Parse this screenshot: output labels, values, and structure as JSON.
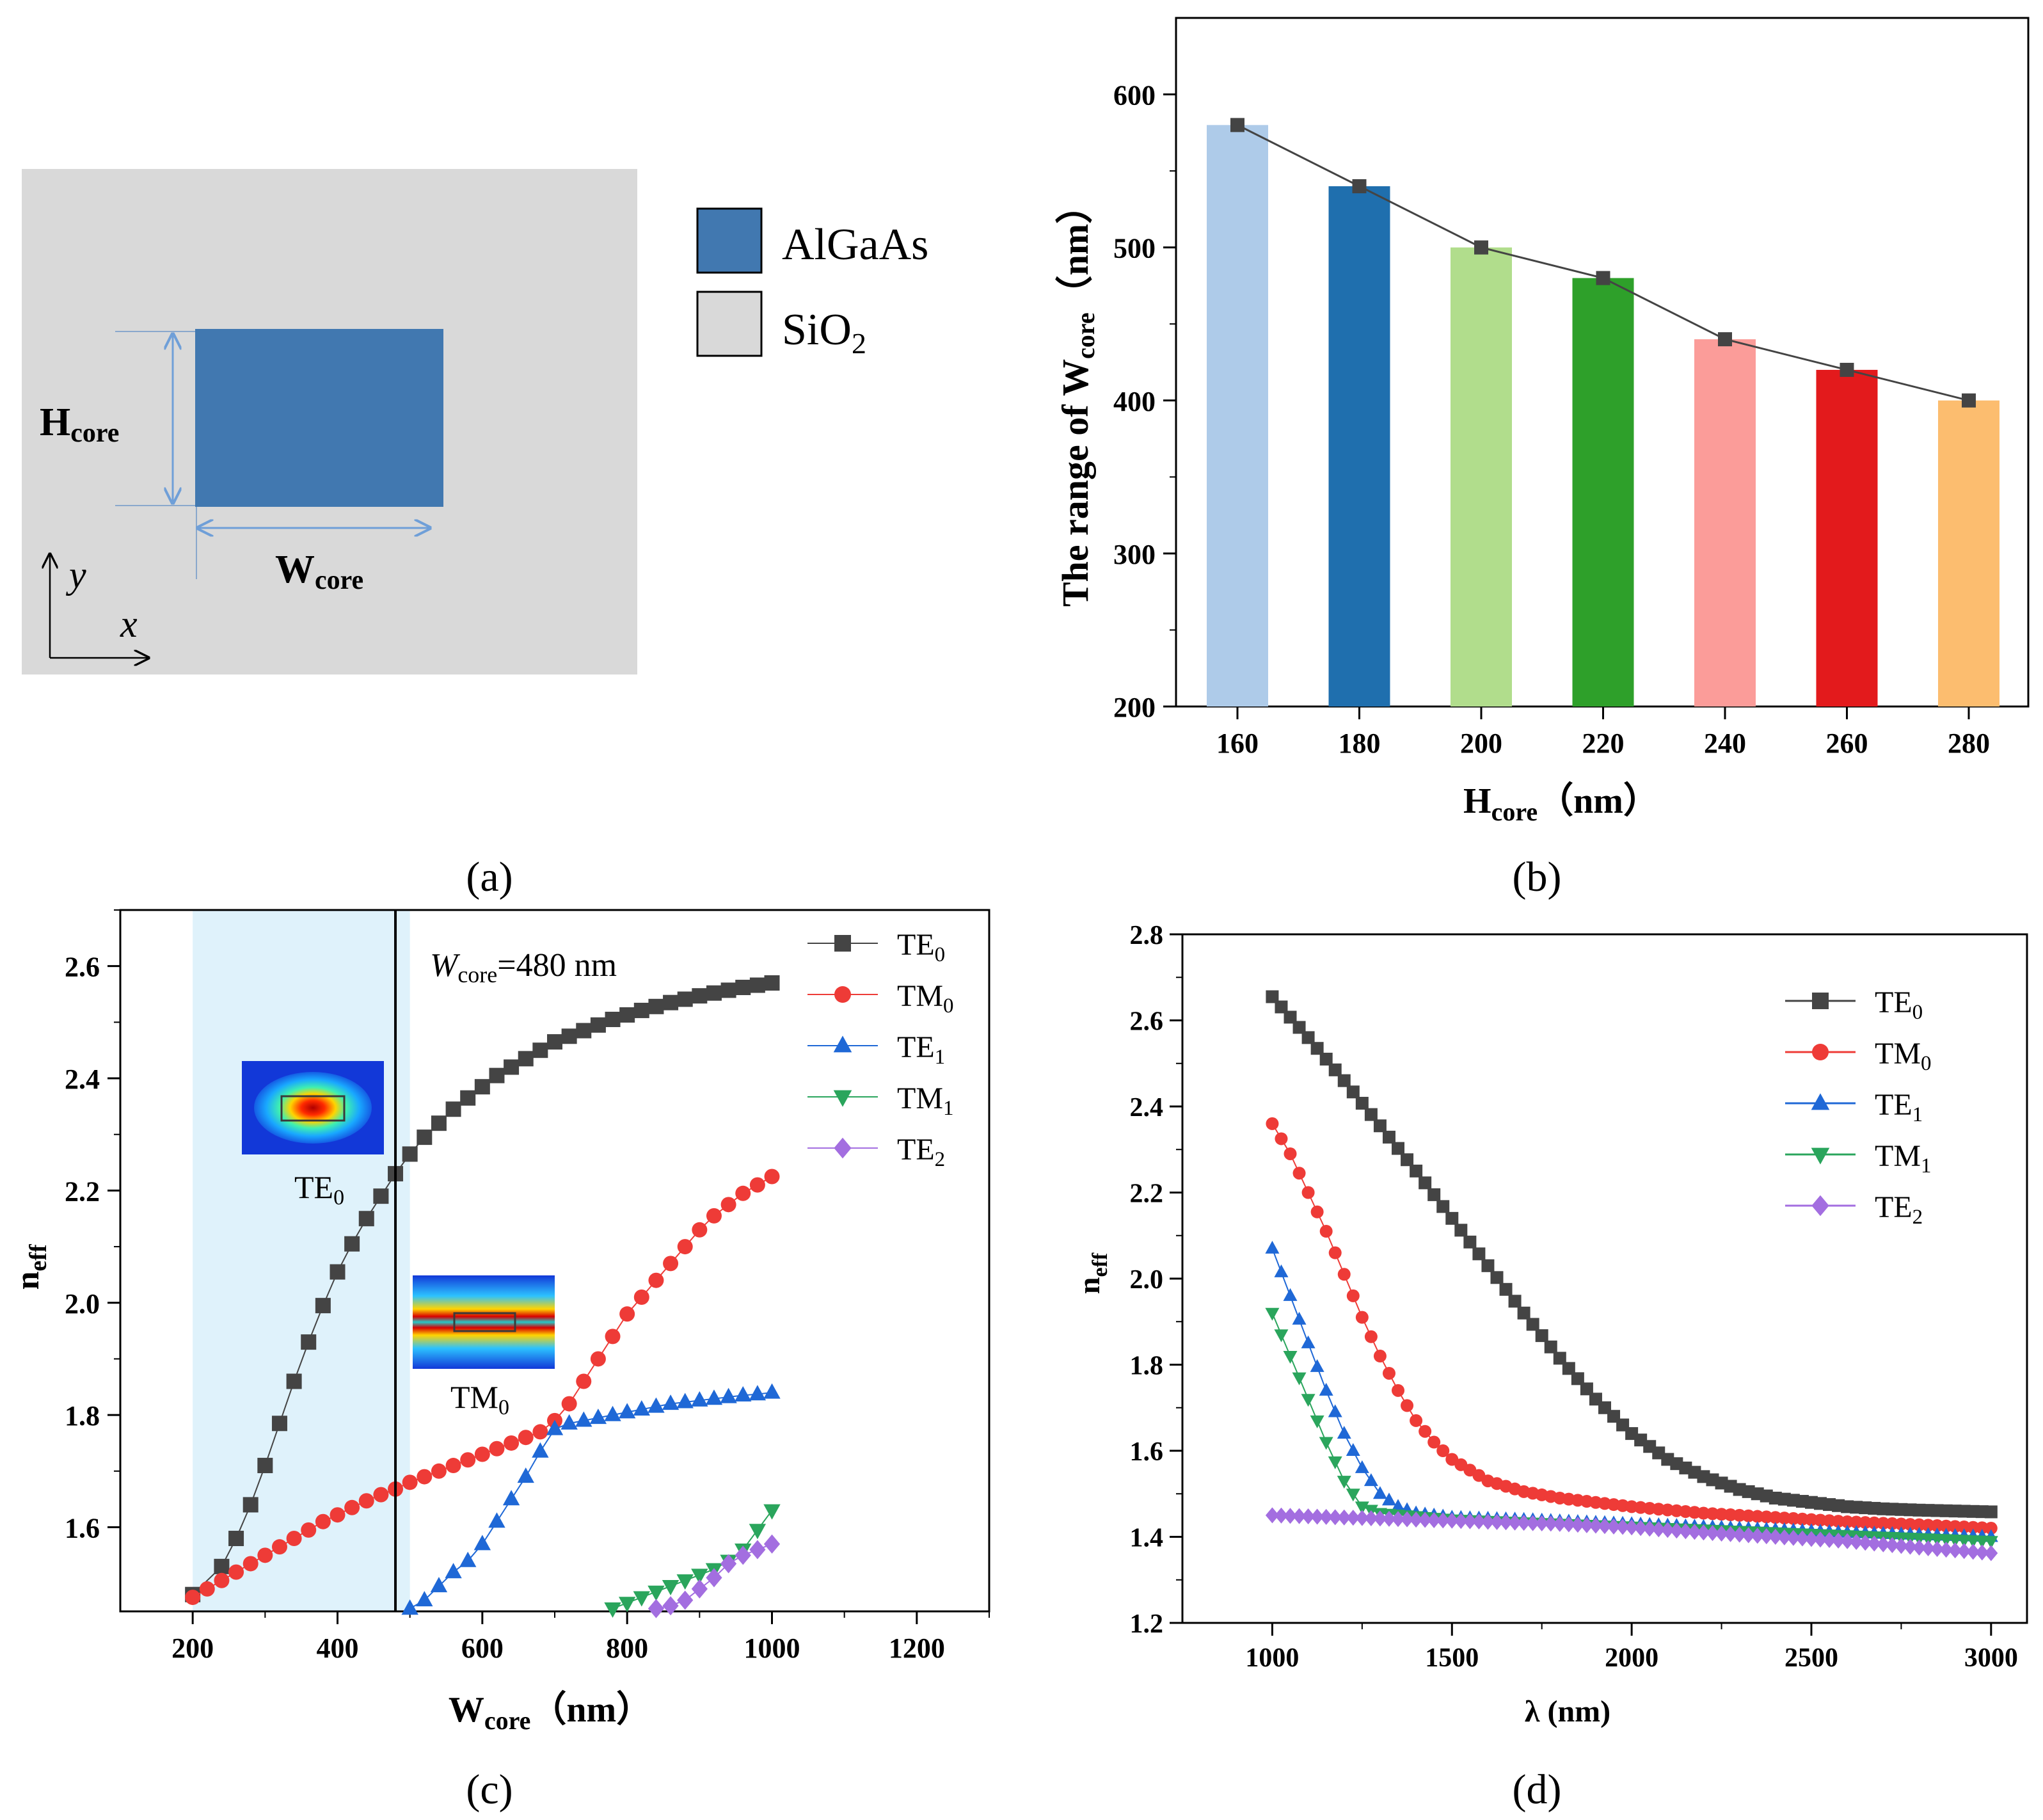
{
  "panel_labels": {
    "a": "(a)",
    "b": "(b)",
    "c": "(c)",
    "d": "(d)"
  },
  "panel_a": {
    "legend": [
      {
        "label": "AlGaAs",
        "color": "#4178b0"
      },
      {
        "label": "SiO",
        "sub": "2",
        "color": "#d9d9d9"
      }
    ],
    "height_label": {
      "main": "H",
      "sub": "core"
    },
    "width_label": {
      "main": "W",
      "sub": "core"
    },
    "axis_x": "x",
    "axis_y": "y",
    "colors": {
      "cladding": "#d9d9d9",
      "core": "#4178b0",
      "arrow": "#6f9fd8"
    }
  },
  "chart_data": [
    {
      "panel": "b",
      "type": "bar",
      "categories": [
        "160",
        "180",
        "200",
        "220",
        "240",
        "260",
        "280"
      ],
      "values": [
        580,
        540,
        500,
        480,
        440,
        420,
        400
      ],
      "bar_colors": [
        "#aecbe9",
        "#1f6fae",
        "#b1dd8c",
        "#2ea02a",
        "#fb9c99",
        "#e31a1c",
        "#fcbd6f"
      ],
      "line_overlay": {
        "values": [
          580,
          540,
          500,
          480,
          440,
          420,
          400
        ],
        "color": "#444444",
        "marker": "square"
      },
      "xlabel": {
        "main": "H",
        "sub": "core",
        "unit": "（nm）"
      },
      "ylabel": {
        "main": "The range of  W",
        "sub": "core",
        "unit": "（nm）"
      },
      "ylim": [
        200,
        650
      ],
      "yticks": [
        "200",
        "300",
        "400",
        "500",
        "600"
      ]
    },
    {
      "panel": "c",
      "type": "scatter",
      "xlabel": {
        "main": "W",
        "sub": "core",
        "unit": "（nm）"
      },
      "ylabel": {
        "main": "n",
        "sub": "eff"
      },
      "xlim": [
        100,
        1300
      ],
      "ylim": [
        1.45,
        2.7
      ],
      "xticks": [
        "200",
        "400",
        "600",
        "800",
        "1000",
        "1200"
      ],
      "yticks": [
        "1.6",
        "1.8",
        "2.0",
        "2.2",
        "2.4",
        "2.6"
      ],
      "shaded_region": [
        200,
        500
      ],
      "vline": {
        "x": 480,
        "label_main": "W",
        "label_sub": "core",
        "label_rest": "=480 nm"
      },
      "insets": [
        {
          "mode_main": "TE",
          "mode_sub": "0"
        },
        {
          "mode_main": "TM",
          "mode_sub": "0"
        }
      ],
      "series": [
        {
          "name_main": "TE",
          "name_sub": "0",
          "color": "#444444",
          "marker": "square",
          "x": [
            200,
            240,
            260,
            280,
            300,
            320,
            340,
            360,
            380,
            400,
            420,
            440,
            460,
            480,
            500,
            520,
            540,
            560,
            580,
            600,
            620,
            640,
            660,
            680,
            700,
            720,
            740,
            760,
            780,
            800,
            820,
            840,
            860,
            880,
            900,
            920,
            940,
            960,
            980,
            1000
          ],
          "y": [
            1.48,
            1.53,
            1.58,
            1.64,
            1.71,
            1.785,
            1.86,
            1.93,
            1.995,
            2.055,
            2.105,
            2.15,
            2.19,
            2.23,
            2.265,
            2.295,
            2.32,
            2.345,
            2.365,
            2.385,
            2.405,
            2.42,
            2.435,
            2.45,
            2.465,
            2.475,
            2.485,
            2.495,
            2.505,
            2.513,
            2.521,
            2.528,
            2.535,
            2.541,
            2.547,
            2.552,
            2.557,
            2.562,
            2.566,
            2.57
          ]
        },
        {
          "name_main": "TM",
          "name_sub": "0",
          "color": "#ee3b37",
          "marker": "circle",
          "x": [
            200,
            220,
            240,
            260,
            280,
            300,
            320,
            340,
            360,
            380,
            400,
            420,
            440,
            460,
            480,
            500,
            520,
            540,
            560,
            580,
            600,
            620,
            640,
            660,
            680,
            700,
            720,
            740,
            760,
            780,
            800,
            820,
            840,
            860,
            880,
            900,
            920,
            940,
            960,
            980,
            1000
          ],
          "y": [
            1.475,
            1.49,
            1.505,
            1.52,
            1.535,
            1.55,
            1.565,
            1.58,
            1.595,
            1.61,
            1.622,
            1.635,
            1.647,
            1.658,
            1.668,
            1.68,
            1.69,
            1.7,
            1.71,
            1.72,
            1.73,
            1.74,
            1.75,
            1.76,
            1.77,
            1.79,
            1.82,
            1.86,
            1.9,
            1.94,
            1.98,
            2.01,
            2.04,
            2.07,
            2.1,
            2.13,
            2.155,
            2.175,
            2.195,
            2.21,
            2.225
          ]
        },
        {
          "name_main": "TE",
          "name_sub": "1",
          "color": "#1f68d6",
          "marker": "triangle-up",
          "x": [
            500,
            520,
            540,
            560,
            580,
            600,
            620,
            640,
            660,
            680,
            700,
            720,
            740,
            760,
            780,
            800,
            820,
            840,
            860,
            880,
            900,
            920,
            940,
            960,
            980,
            1000
          ],
          "y": [
            1.455,
            1.47,
            1.495,
            1.52,
            1.54,
            1.57,
            1.61,
            1.65,
            1.69,
            1.735,
            1.775,
            1.785,
            1.79,
            1.795,
            1.8,
            1.805,
            1.81,
            1.815,
            1.82,
            1.823,
            1.826,
            1.829,
            1.832,
            1.835,
            1.837,
            1.84
          ]
        },
        {
          "name_main": "TM",
          "name_sub": "1",
          "color": "#2aa55c",
          "marker": "triangle-down",
          "x": [
            780,
            800,
            820,
            840,
            860,
            880,
            900,
            920,
            940,
            960,
            980,
            1000
          ],
          "y": [
            1.455,
            1.465,
            1.475,
            1.485,
            1.495,
            1.505,
            1.515,
            1.525,
            1.54,
            1.56,
            1.595,
            1.63
          ]
        },
        {
          "name_main": "TE",
          "name_sub": "2",
          "color": "#a36ee0",
          "marker": "diamond",
          "x": [
            840,
            860,
            880,
            900,
            920,
            940,
            960,
            980,
            1000
          ],
          "y": [
            1.455,
            1.46,
            1.47,
            1.49,
            1.51,
            1.535,
            1.55,
            1.56,
            1.57
          ]
        }
      ]
    },
    {
      "panel": "d",
      "type": "scatter",
      "xlabel": {
        "main": "λ (nm)"
      },
      "ylabel": {
        "main": "n",
        "sub": "eff"
      },
      "xlim": [
        750,
        3100
      ],
      "ylim": [
        1.2,
        2.8
      ],
      "xticks": [
        "1000",
        "1500",
        "2000",
        "2500",
        "3000"
      ],
      "yticks": [
        "1.2",
        "1.4",
        "1.6",
        "1.8",
        "2.0",
        "2.2",
        "2.4",
        "2.6",
        "2.8"
      ],
      "series": [
        {
          "name_main": "TE",
          "name_sub": "0",
          "color": "#444444",
          "marker": "square",
          "x": [
            1000,
            1100,
            1200,
            1300,
            1400,
            1500,
            1600,
            1700,
            1800,
            1900,
            2000,
            2100,
            2200,
            2300,
            2400,
            2500,
            2600,
            2700,
            2800,
            2900,
            3000
          ],
          "y": [
            2.655,
            2.56,
            2.46,
            2.355,
            2.25,
            2.14,
            2.03,
            1.92,
            1.815,
            1.72,
            1.64,
            1.58,
            1.54,
            1.51,
            1.49,
            1.48,
            1.47,
            1.465,
            1.462,
            1.46,
            1.458
          ]
        },
        {
          "name_main": "TM",
          "name_sub": "0",
          "color": "#ee3b37",
          "marker": "circle",
          "x": [
            1000,
            1050,
            1100,
            1150,
            1200,
            1250,
            1300,
            1350,
            1400,
            1450,
            1500,
            1600,
            1700,
            1800,
            1900,
            2000,
            2200,
            2400,
            2600,
            2800,
            3000
          ],
          "y": [
            2.36,
            2.29,
            2.2,
            2.11,
            2.01,
            1.91,
            1.82,
            1.74,
            1.67,
            1.62,
            1.58,
            1.53,
            1.505,
            1.49,
            1.48,
            1.47,
            1.455,
            1.445,
            1.435,
            1.428,
            1.42
          ]
        },
        {
          "name_main": "TE",
          "name_sub": "1",
          "color": "#1f68d6",
          "marker": "triangle-up",
          "x": [
            1000,
            1050,
            1100,
            1150,
            1200,
            1250,
            1300,
            1350,
            1400,
            1450,
            1500,
            1700,
            2000,
            2300,
            2600,
            3000
          ],
          "y": [
            2.07,
            1.96,
            1.85,
            1.74,
            1.64,
            1.56,
            1.5,
            1.47,
            1.455,
            1.45,
            1.445,
            1.44,
            1.43,
            1.42,
            1.41,
            1.4
          ]
        },
        {
          "name_main": "TM",
          "name_sub": "1",
          "color": "#2aa55c",
          "marker": "triangle-down",
          "x": [
            1000,
            1050,
            1100,
            1150,
            1200,
            1250,
            1300,
            1500,
            1800,
            2100,
            2400,
            2700,
            3000
          ],
          "y": [
            1.92,
            1.82,
            1.72,
            1.62,
            1.53,
            1.47,
            1.455,
            1.44,
            1.43,
            1.42,
            1.41,
            1.4,
            1.39
          ]
        },
        {
          "name_main": "TE",
          "name_sub": "2",
          "color": "#a36ee0",
          "marker": "diamond",
          "x": [
            1000,
            1200,
            1400,
            1600,
            1800,
            2000,
            2200,
            2400,
            2600,
            2800,
            3000
          ],
          "y": [
            1.45,
            1.445,
            1.44,
            1.435,
            1.43,
            1.422,
            1.41,
            1.4,
            1.39,
            1.375,
            1.362
          ]
        }
      ]
    }
  ]
}
